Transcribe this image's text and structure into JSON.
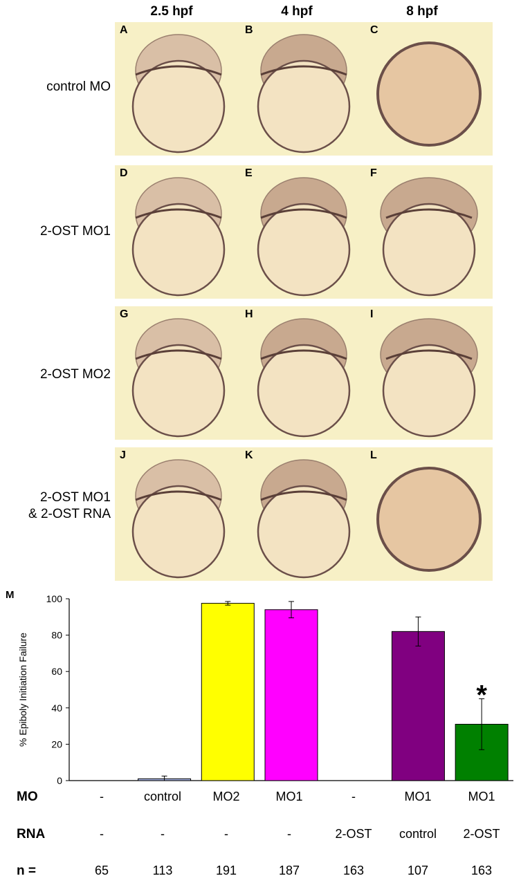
{
  "columns": [
    "2.5 hpf",
    "4 hpf",
    "8 hpf"
  ],
  "rows": [
    {
      "label_lines": [
        "control MO"
      ],
      "panels": [
        "A",
        "B",
        "C"
      ]
    },
    {
      "label_lines": [
        "2-OST MO1"
      ],
      "panels": [
        "D",
        "E",
        "F"
      ]
    },
    {
      "label_lines": [
        "2-OST MO2"
      ],
      "panels": [
        "G",
        "H",
        "I"
      ]
    },
    {
      "label_lines": [
        "2-OST MO1",
        "& 2-OST RNA"
      ],
      "panels": [
        "J",
        "K",
        "L"
      ]
    }
  ],
  "colors": {
    "tile_bg": "#f7f0c6",
    "blastoderm": "#c8a98f",
    "yolk": "#f3e3c2",
    "yolk_edge": "#6b4f49"
  },
  "panel_m": "M",
  "chart_data": {
    "type": "bar",
    "ylabel": "% Epiboly Initiation Failure",
    "ylim": [
      0,
      100
    ],
    "yticks": [
      0,
      20,
      40,
      60,
      80,
      100
    ],
    "values": [
      0,
      1,
      97.5,
      94,
      0,
      82,
      31
    ],
    "errors": [
      0,
      1.5,
      1,
      4.5,
      0,
      8,
      14
    ],
    "colors": [
      "#ffffff",
      "#aab7e8",
      "#ffff00",
      "#ff00ff",
      "#ffffff",
      "#800080",
      "#008000"
    ],
    "annotation": {
      "text": "*",
      "bar_index": 6
    }
  },
  "conditions": {
    "mo_label": "MO",
    "mo": [
      "-",
      "control",
      "MO2",
      "MO1",
      "-",
      "MO1",
      "MO1"
    ],
    "rna_label": "RNA",
    "rna": [
      "-",
      "-",
      "-",
      "-",
      "2-OST",
      "control",
      "2-OST"
    ],
    "n_label": "n =",
    "n": [
      "65",
      "113",
      "191",
      "187",
      "163",
      "107",
      "163"
    ]
  }
}
